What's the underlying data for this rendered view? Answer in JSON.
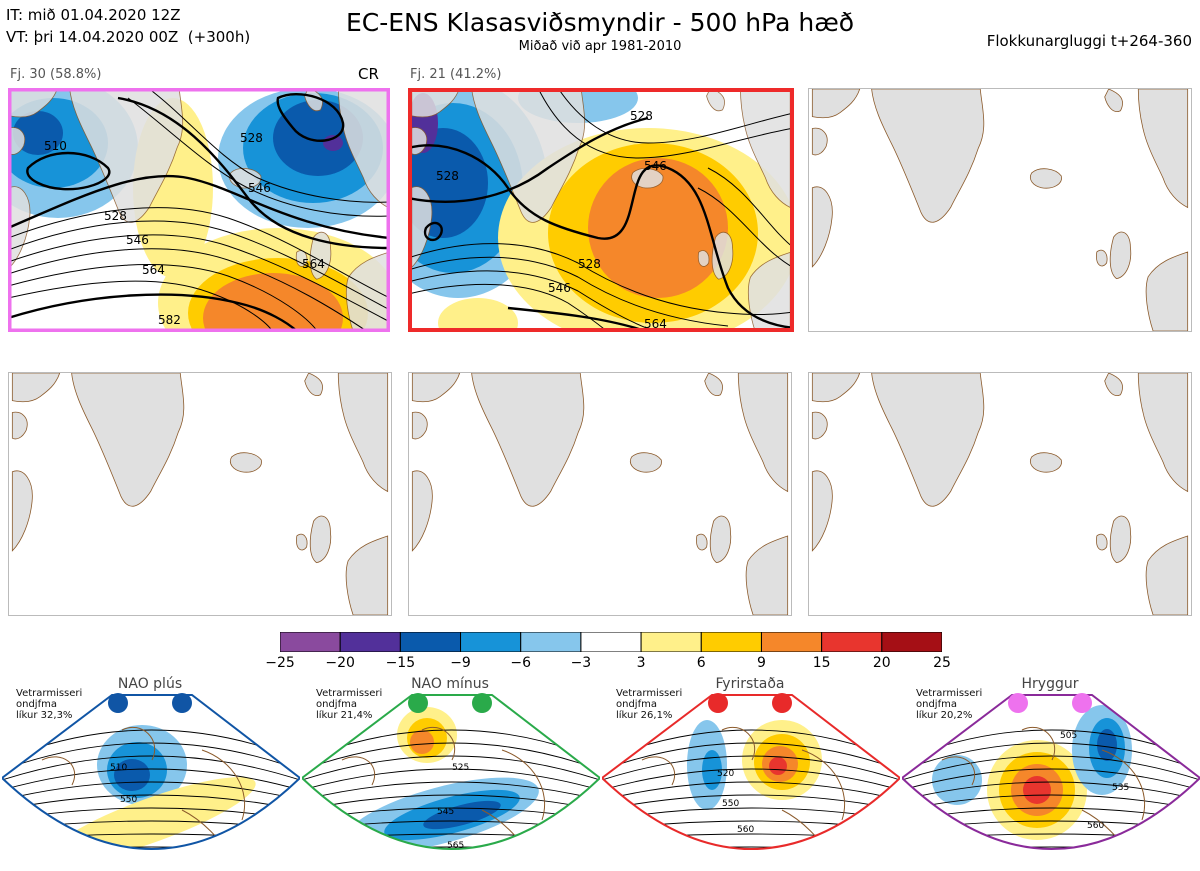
{
  "header": {
    "it_line": "IT: mið 01.04.2020 12Z",
    "vt_line": "VT: þri 14.04.2020 00Z  (+300h)",
    "title": "EC-ENS Klasasviðsmyndir - 500 hPa hæð",
    "subtitle": "Miðað við apr 1981-2010",
    "window": "Flokkunargluggi t+264-360"
  },
  "colors": {
    "cluster1_border": "#ee72ee",
    "cluster2_border": "#ee2a2a",
    "land": "#e0e0e0",
    "coast": "#8b5a2b"
  },
  "chart_data": [
    {
      "type": "heatmap",
      "title": "500 hPa anomaly colour scale",
      "bins": [
        -25,
        -20,
        -15,
        -9,
        -6,
        -3,
        3,
        6,
        9,
        15,
        20,
        25
      ],
      "bin_colors": [
        "#8a4a9e",
        "#52309a",
        "#0a5aac",
        "#1793d8",
        "#86c6ec",
        "#ffffff",
        "#fff08a",
        "#ffcc00",
        "#f5872a",
        "#e8352e",
        "#a50f15"
      ]
    },
    {
      "type": "heatmap",
      "panel": 1,
      "label": "Fj. 30 (58.8%)",
      "regime_tag": "CR",
      "members": 30,
      "percent": 58.8,
      "contour_labels": [
        "510",
        "528",
        "546",
        "528",
        "546",
        "564",
        "564",
        "582"
      ]
    },
    {
      "type": "heatmap",
      "panel": 2,
      "label": "Fj. 21 (41.2%)",
      "members": 21,
      "percent": 41.2,
      "contour_labels": [
        "528",
        "528",
        "546",
        "528",
        "546",
        "564"
      ]
    }
  ],
  "regimes": [
    {
      "name": "NAO plús",
      "note": "Vetrarmisseri\nondjfma\nlíkur 32,3%",
      "dot_color": "#1055a5",
      "border": "#1055a5",
      "labels": [
        "510",
        "550"
      ]
    },
    {
      "name": "NAO mínus",
      "note": "Vetrarmisseri\nondjfma\nlíkur 21,4%",
      "dot_color": "#2aaa4a",
      "border": "#2aaa4a",
      "labels": [
        "525",
        "545",
        "565"
      ]
    },
    {
      "name": "Fyrirstaða",
      "note": "Vetrarmisseri\nondjfma\nlíkur 26,1%",
      "dot_color": "#e82a2a",
      "border": "#e82a2a",
      "labels": [
        "520",
        "550",
        "560"
      ]
    },
    {
      "name": "Hryggur",
      "note": "Vetrarmisseri\nondjfma\nlíkur 20,2%",
      "dot_color": "#ee72ee",
      "border": "#8a2a9a",
      "labels": [
        "505",
        "535",
        "560"
      ]
    }
  ]
}
